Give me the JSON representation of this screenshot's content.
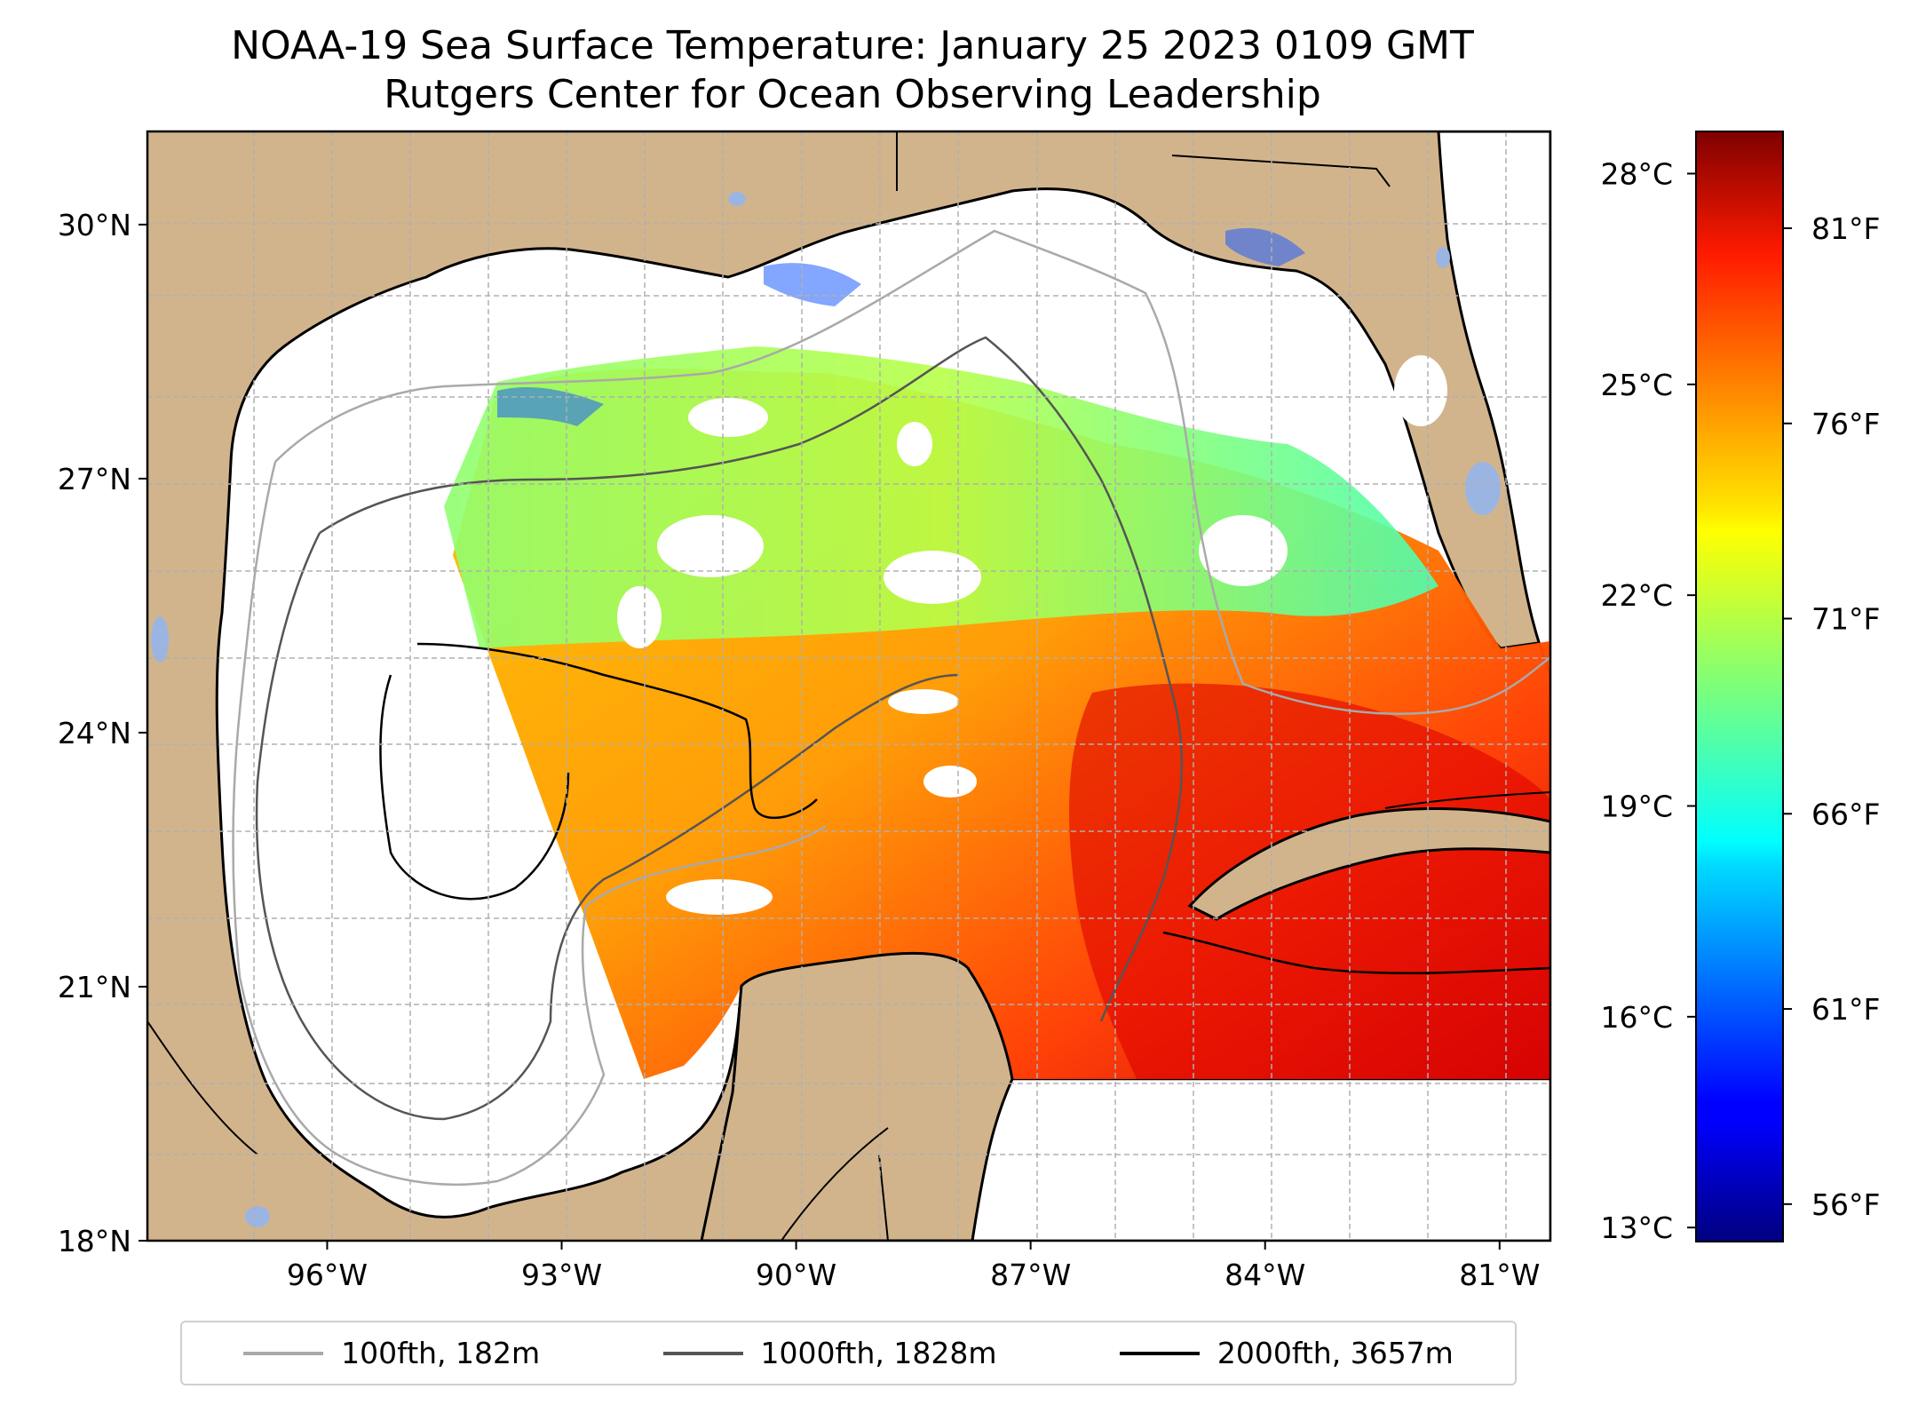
{
  "title": "NOAA-19 Sea Surface Temperature: January 25 2023 0109 GMT",
  "subtitle": "Rutgers Center for Ocean Observing Leadership",
  "map": {
    "extent": {
      "lon_min": -98.3,
      "lon_max": -80.35,
      "lat_min": 18.0,
      "lat_max": 31.1
    },
    "lat_ticks": [
      {
        "value": 30,
        "label": "30°N"
      },
      {
        "value": 27,
        "label": "27°N"
      },
      {
        "value": 24,
        "label": "24°N"
      },
      {
        "value": 21,
        "label": "21°N"
      },
      {
        "value": 18,
        "label": "18°N"
      }
    ],
    "lon_ticks": [
      {
        "value": -96,
        "label": "96°W"
      },
      {
        "value": -93,
        "label": "93°W"
      },
      {
        "value": -90,
        "label": "90°W"
      },
      {
        "value": -87,
        "label": "87°W"
      },
      {
        "value": -84,
        "label": "84°W"
      },
      {
        "value": -81,
        "label": "81°W"
      }
    ],
    "grid": true,
    "colors": {
      "land": "#d2b48c",
      "ocean": "#ffffff",
      "lake": "#9bb5e2",
      "grid": "#b0b0b0",
      "coast": "#000000"
    }
  },
  "colorbar": {
    "colormap": "jet",
    "celsius_ticks": [
      {
        "value": 28,
        "label": "28°C"
      },
      {
        "value": 25,
        "label": "25°C"
      },
      {
        "value": 22,
        "label": "22°C"
      },
      {
        "value": 19,
        "label": "19°C"
      },
      {
        "value": 16,
        "label": "16°C"
      },
      {
        "value": 13,
        "label": "13°C"
      }
    ],
    "fahrenheit_ticks": [
      {
        "value": 81,
        "label": "81°F"
      },
      {
        "value": 76,
        "label": "76°F"
      },
      {
        "value": 71,
        "label": "71°F"
      },
      {
        "value": 66,
        "label": "66°F"
      },
      {
        "value": 61,
        "label": "61°F"
      },
      {
        "value": 56,
        "label": "56°F"
      }
    ],
    "range_celsius": [
      12.8,
      28.6
    ]
  },
  "legend": [
    {
      "label": "100fth, 182m",
      "color": "#a9a9a9"
    },
    {
      "label": "1000fth, 1828m",
      "color": "#555555"
    },
    {
      "label": "2000fth, 3657m",
      "color": "#000000"
    }
  ]
}
